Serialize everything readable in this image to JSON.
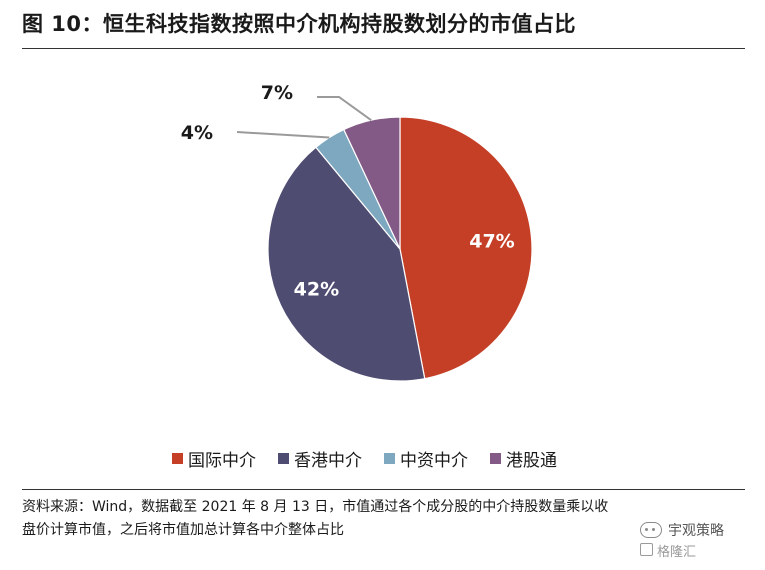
{
  "title": "图 10：恒生科技指数按照中介机构持股数划分的市值占比",
  "chart_data": {
    "type": "pie",
    "title": "",
    "categories": [
      "国际中介",
      "香港中介",
      "中资中介",
      "港股通"
    ],
    "values": [
      47,
      42,
      4,
      7
    ],
    "labels": [
      "47%",
      "42%",
      "4%",
      "7%"
    ],
    "colors": [
      "#C53F26",
      "#4F4C72",
      "#7EA8C0",
      "#835A86"
    ],
    "label_color_inside": "#ffffff",
    "label_color_outside": "#1a1a1a",
    "legend_position": "bottom"
  },
  "source": "资料来源：Wind，数据截至 2021 年 8 月 13 日，市值通过各个成分股的中介持股数量乘以收盘价计算市值，之后将市值加总计算各中介整体占比",
  "watermark": {
    "name": "宇观策略",
    "sub": "格隆汇"
  }
}
